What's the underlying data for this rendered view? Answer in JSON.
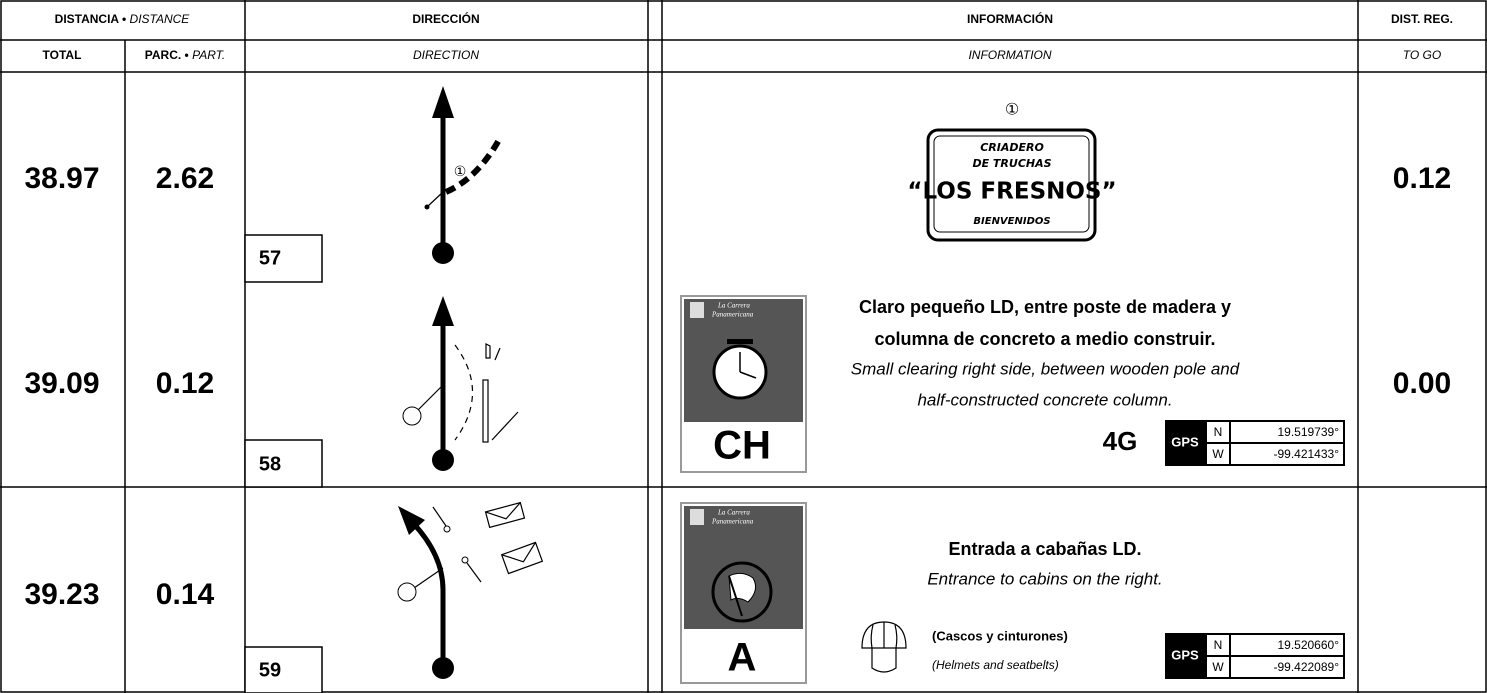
{
  "header": {
    "distance": {
      "es": "DISTANCIA •",
      "en": "DISTANCE"
    },
    "total": "TOTAL",
    "partial": {
      "es": "PARC. •",
      "en": "PART."
    },
    "direction": {
      "es": "DIRECCIÓN",
      "en": "DIRECTION"
    },
    "information": {
      "es": "INFORMACIÓN",
      "en": "INFORMATION"
    },
    "to_go": {
      "es": "DIST. REG.",
      "en": "TO GO"
    }
  },
  "rows": [
    {
      "number": "57",
      "total": "38.97",
      "partial": "2.62",
      "to_go": "0.12",
      "direction_note": "①",
      "sign": {
        "number": "①",
        "lines": [
          "CRIADERO",
          "DE TRUCHAS",
          "“LOS FRESNOS”",
          "BIENVENIDOS"
        ]
      }
    },
    {
      "number": "58",
      "total": "39.09",
      "partial": "0.12",
      "to_go": "0.00",
      "badge": {
        "brand": [
          "La Carrera",
          "Panamericana"
        ],
        "code": "CH"
      },
      "text_es": [
        "Claro pequeño LD, entre poste de madera y",
        "columna de concreto a medio construir."
      ],
      "text_en": [
        "Small clearing right side, between wooden pole and",
        "half-constructed concrete column."
      ],
      "signal": "4G",
      "gps": {
        "label": "GPS",
        "n_label": "N",
        "n": "19.519739°",
        "w_label": "W",
        "w": "-99.421433°"
      }
    },
    {
      "number": "59",
      "total": "39.23",
      "partial": "0.14",
      "badge": {
        "brand": [
          "La Carrera",
          "Panamericana"
        ],
        "code": "A"
      },
      "text_es": [
        "Entrada a cabañas LD."
      ],
      "text_en": [
        "Entrance to cabins on the right."
      ],
      "note_es": "(Cascos y cinturones)",
      "note_en": "(Helmets and seatbelts)",
      "gps": {
        "label": "GPS",
        "n_label": "N",
        "n": "19.520660°",
        "w_label": "W",
        "w": "-99.422089°"
      }
    }
  ]
}
